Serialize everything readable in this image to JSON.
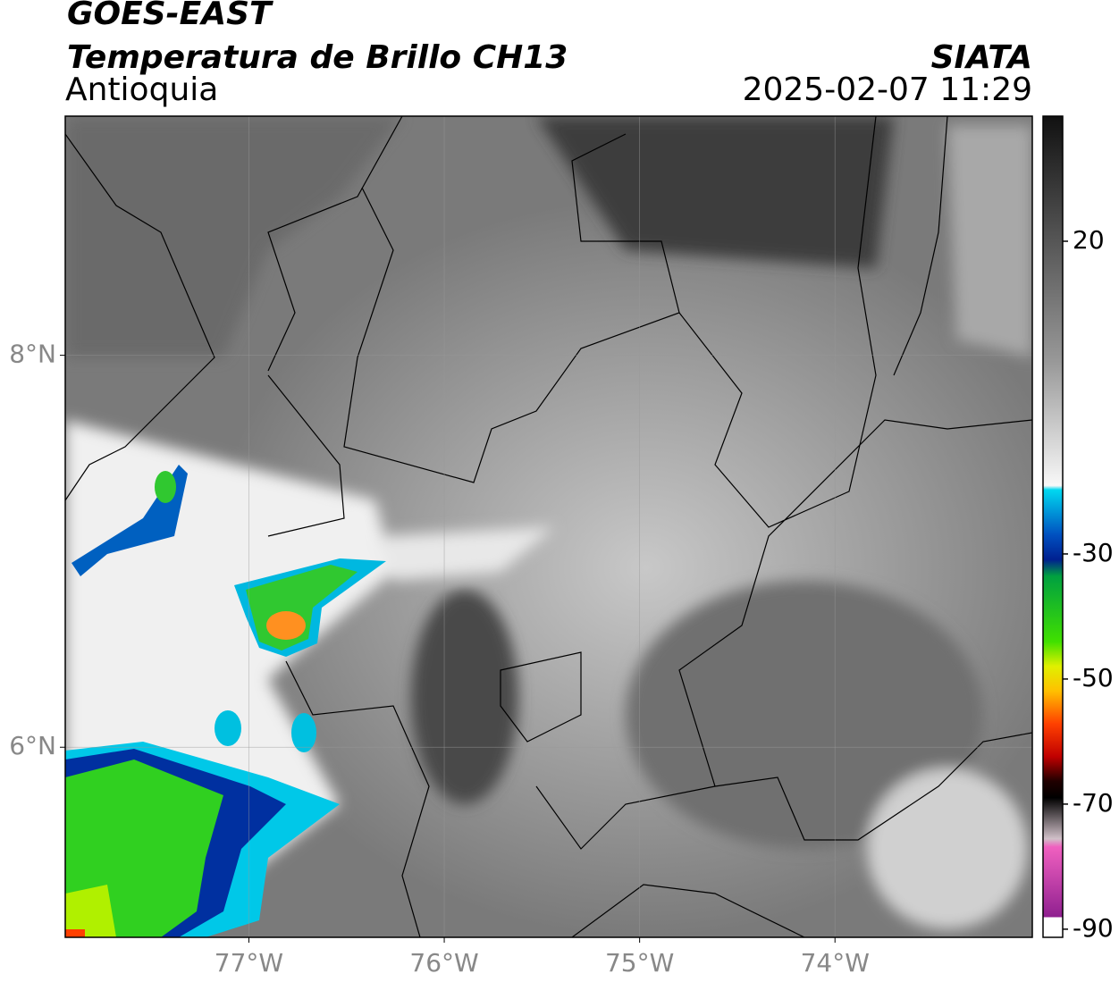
{
  "header": {
    "title": "GOES-EAST",
    "subtitle": "Temperatura de Brillo CH13",
    "region": "Antioquia",
    "source": "SIATA",
    "datetime": "2025-02-07 11:29"
  },
  "map": {
    "xlim": [
      -77.94,
      -72.99
    ],
    "ylim": [
      5.03,
      9.22
    ],
    "xticks": [
      {
        "value": -77,
        "label": "77°W"
      },
      {
        "value": -76,
        "label": "76°W"
      },
      {
        "value": -75,
        "label": "75°W"
      },
      {
        "value": -74,
        "label": "74°W"
      }
    ],
    "yticks": [
      {
        "value": 6,
        "label": "6°N"
      },
      {
        "value": 8,
        "label": "8°N"
      }
    ],
    "grid": true
  },
  "colorbar": {
    "ylim": [
      -91.3,
      40
    ],
    "yticks": [
      -90,
      -70,
      -50,
      -30,
      20
    ]
  }
}
